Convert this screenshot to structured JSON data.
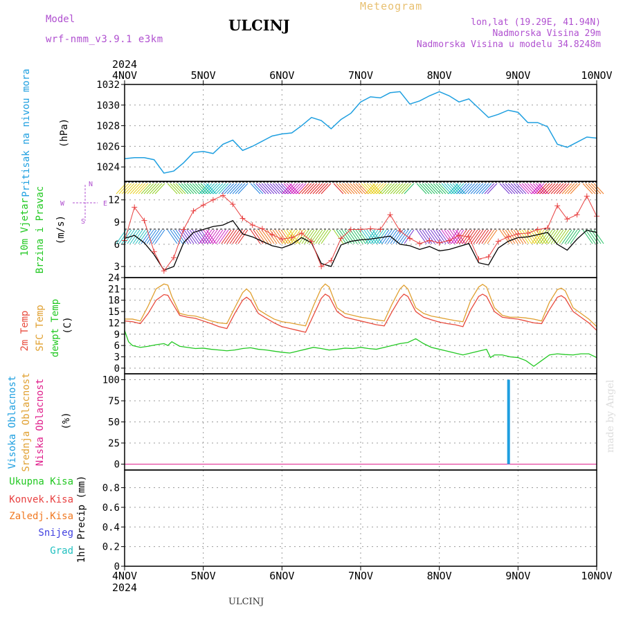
{
  "header": {
    "model_label": "Model",
    "model_name": "wrf-nmm_v3.9.1 e3km",
    "station": "ULCINJ",
    "product": "Meteogram",
    "coords": "lon,lat (19.29E, 41.94N)",
    "altitude": "Nadmorska Visina 29m",
    "model_altitude": "Nadmorska Visina u modelu 34.8248m",
    "footer_station": "ULCINJ",
    "credit": "made by Angel"
  },
  "colors": {
    "pressure": "#1e9fe0",
    "wind_speed": "#000000",
    "wind_gust": "#e84040",
    "temp_2m": "#e84a3c",
    "temp_sfc": "#e0a030",
    "dewpoint": "#22c822",
    "cloud_high": "#1e9fe0",
    "cloud_mid": "#e0a030",
    "cloud_low": "#e0208c",
    "precip_total": "#22c822",
    "precip_conv": "#e84040",
    "precip_frozen": "#f07820",
    "precip_snow": "#4040e0",
    "precip_hail": "#20c0c0",
    "model_text": "#b050d0",
    "product_text": "#e8c070"
  },
  "chart_data": [
    {
      "type": "line",
      "year_label": "2024",
      "x_tick_labels": [
        "4NOV",
        "5NOV",
        "6NOV",
        "7NOV",
        "8NOV",
        "9NOV",
        "10NOV"
      ],
      "xlim": [
        0,
        6
      ],
      "ylabel_title": "Pritisak na nivou mora",
      "ylabel_unit": "(hPa)",
      "ylim": [
        1022.6,
        1032
      ],
      "y_ticks": [
        1024,
        1026,
        1028,
        1030,
        1032
      ],
      "series": [
        {
          "x": [
            0,
            0.125,
            0.25,
            0.375,
            0.5,
            0.625,
            0.75,
            0.875,
            1,
            1.125,
            1.25,
            1.375,
            1.5,
            1.625,
            1.75,
            1.875,
            2,
            2.125,
            2.25,
            2.375,
            2.5,
            2.625,
            2.75,
            2.875,
            3,
            3.125,
            3.25,
            3.375,
            3.5,
            3.625,
            3.75,
            3.875,
            4,
            4.125,
            4.25,
            4.375,
            4.5,
            4.625,
            4.75,
            4.875,
            5,
            5.125,
            5.25,
            5.375,
            5.5,
            5.625,
            5.75,
            5.875,
            6
          ],
          "values": [
            1024.8,
            1024.9,
            1024.9,
            1024.7,
            1023.4,
            1023.6,
            1024.4,
            1025.4,
            1025.5,
            1025.3,
            1026.2,
            1026.6,
            1025.6,
            1026.0,
            1026.5,
            1027.0,
            1027.2,
            1027.3,
            1028.0,
            1028.8,
            1028.5,
            1027.7,
            1028.6,
            1029.2,
            1030.3,
            1030.8,
            1030.7,
            1031.2,
            1031.3,
            1030.1,
            1030.4,
            1030.9,
            1031.3,
            1030.9,
            1030.3,
            1030.6,
            1029.7,
            1028.8,
            1029.1,
            1029.5,
            1029.3,
            1028.3,
            1028.3,
            1027.9,
            1026.2,
            1025.9,
            1026.4,
            1026.9,
            1026.8
          ]
        }
      ]
    },
    {
      "type": "line",
      "ylabel_title": "10m Vjetar",
      "ylabel_title2": "Brzina i Pravac",
      "ylabel_unit": "(m/s)",
      "compass_n": "N",
      "compass_w": "W",
      "compass_e": "E",
      "compass_s": "S",
      "ylim": [
        1.5,
        14.5
      ],
      "y_ticks": [
        3,
        6,
        9,
        12
      ],
      "series": [
        {
          "name": "wind speed",
          "x": [
            0,
            0.125,
            0.25,
            0.375,
            0.5,
            0.625,
            0.75,
            0.875,
            1,
            1.125,
            1.25,
            1.375,
            1.5,
            1.625,
            1.75,
            1.875,
            2,
            2.125,
            2.25,
            2.375,
            2.5,
            2.625,
            2.75,
            2.875,
            3,
            3.125,
            3.25,
            3.375,
            3.5,
            3.625,
            3.75,
            3.875,
            4,
            4.125,
            4.25,
            4.375,
            4.5,
            4.625,
            4.75,
            4.875,
            5,
            5.125,
            5.25,
            5.375,
            5.5,
            5.625,
            5.75,
            5.875,
            6
          ],
          "values": [
            6.8,
            7.2,
            6.2,
            4.6,
            2.5,
            3.0,
            6.2,
            7.6,
            8.0,
            8.4,
            8.6,
            9.2,
            7.4,
            7.0,
            6.4,
            5.8,
            5.5,
            6.0,
            6.9,
            6.2,
            3.4,
            3.0,
            5.9,
            6.4,
            6.6,
            6.7,
            6.9,
            7.1,
            6.0,
            5.8,
            5.3,
            5.7,
            5.1,
            5.3,
            5.7,
            6.1,
            3.5,
            3.2,
            5.5,
            6.4,
            6.9,
            7.0,
            7.3,
            7.6,
            6.0,
            5.2,
            6.7,
            7.9,
            7.6
          ]
        },
        {
          "name": "wind gust",
          "x": [
            0,
            0.125,
            0.25,
            0.375,
            0.5,
            0.625,
            0.75,
            0.875,
            1,
            1.125,
            1.25,
            1.375,
            1.5,
            1.625,
            1.75,
            1.875,
            2,
            2.125,
            2.25,
            2.375,
            2.5,
            2.625,
            2.75,
            2.875,
            3,
            3.125,
            3.25,
            3.375,
            3.5,
            3.625,
            3.75,
            3.875,
            4,
            4.125,
            4.25,
            4.375,
            4.5,
            4.625,
            4.75,
            4.875,
            5,
            5.125,
            5.25,
            5.375,
            5.5,
            5.625,
            5.75,
            5.875,
            6
          ],
          "values": [
            6.5,
            11.0,
            9.2,
            5.0,
            2.4,
            4.2,
            8.0,
            10.5,
            11.3,
            12.0,
            12.6,
            11.4,
            9.5,
            8.6,
            8.1,
            7.3,
            6.7,
            6.9,
            7.5,
            6.4,
            3.0,
            3.8,
            6.8,
            8.0,
            8.0,
            8.1,
            8.0,
            10.0,
            7.8,
            6.8,
            6.1,
            6.5,
            6.2,
            6.5,
            7.2,
            7.0,
            4.0,
            4.3,
            6.4,
            7.0,
            7.4,
            7.5,
            8.0,
            8.2,
            11.2,
            9.4,
            10.0,
            12.5,
            9.8
          ]
        }
      ]
    },
    {
      "type": "line",
      "ylabel_title": "2m Temp",
      "ylabel_title2": "SFC Temp",
      "ylabel_title3": "dewpt Temp",
      "ylabel_unit": "(C)",
      "ylim": [
        -1.5,
        24
      ],
      "y_ticks": [
        0,
        3,
        6,
        9,
        12,
        15,
        18,
        21,
        24
      ],
      "series": [
        {
          "name": "2m Temp",
          "x": [
            0,
            0.1,
            0.2,
            0.3,
            0.4,
            0.5,
            0.55,
            0.6,
            0.7,
            0.8,
            0.9,
            1,
            1.1,
            1.2,
            1.3,
            1.4,
            1.5,
            1.55,
            1.6,
            1.7,
            1.8,
            1.9,
            2,
            2.1,
            2.2,
            2.3,
            2.4,
            2.5,
            2.55,
            2.6,
            2.7,
            2.8,
            2.9,
            3,
            3.1,
            3.2,
            3.3,
            3.4,
            3.5,
            3.55,
            3.6,
            3.7,
            3.8,
            3.9,
            4,
            4.1,
            4.2,
            4.3,
            4.4,
            4.5,
            4.55,
            4.6,
            4.7,
            4.8,
            4.9,
            5,
            5.1,
            5.2,
            5.3,
            5.4,
            5.5,
            5.55,
            5.6,
            5.7,
            5.8,
            5.9,
            6
          ],
          "values": [
            12.5,
            12.3,
            11.8,
            14.5,
            18.0,
            19.5,
            19.3,
            17.5,
            14.0,
            13.5,
            13.2,
            12.5,
            11.8,
            11.0,
            10.5,
            14.5,
            18.0,
            18.8,
            18.0,
            14.5,
            13.2,
            12.0,
            11.0,
            10.5,
            10.0,
            9.5,
            14.0,
            18.5,
            19.6,
            19.0,
            15.0,
            13.5,
            13.0,
            12.5,
            12.0,
            11.5,
            11.2,
            15.0,
            18.5,
            19.6,
            19.0,
            15.0,
            13.5,
            12.8,
            12.2,
            11.8,
            11.5,
            11.0,
            15.5,
            19.0,
            19.6,
            19.0,
            15.0,
            13.5,
            13.2,
            13.0,
            12.5,
            12.0,
            11.8,
            15.5,
            18.8,
            19.2,
            18.5,
            15.0,
            13.5,
            12.0,
            10.0
          ]
        },
        {
          "name": "SFC Temp",
          "x": [
            0,
            0.1,
            0.2,
            0.3,
            0.4,
            0.5,
            0.55,
            0.6,
            0.7,
            0.8,
            0.9,
            1,
            1.1,
            1.2,
            1.3,
            1.4,
            1.5,
            1.55,
            1.6,
            1.7,
            1.8,
            1.9,
            2,
            2.1,
            2.2,
            2.3,
            2.4,
            2.5,
            2.55,
            2.6,
            2.7,
            2.8,
            2.9,
            3,
            3.1,
            3.2,
            3.3,
            3.4,
            3.5,
            3.55,
            3.6,
            3.7,
            3.8,
            3.9,
            4,
            4.1,
            4.2,
            4.3,
            4.4,
            4.5,
            4.55,
            4.6,
            4.7,
            4.8,
            4.9,
            5,
            5.1,
            5.2,
            5.3,
            5.4,
            5.5,
            5.55,
            5.6,
            5.7,
            5.8,
            5.9,
            6
          ],
          "values": [
            13.0,
            13.0,
            12.5,
            16.5,
            21.0,
            22.3,
            22.0,
            19.0,
            14.5,
            14.0,
            13.8,
            13.2,
            12.5,
            12.0,
            11.8,
            16.0,
            20.0,
            21.0,
            20.0,
            15.5,
            14.2,
            13.0,
            12.3,
            12.0,
            11.6,
            11.2,
            16.5,
            21.2,
            22.3,
            21.5,
            16.0,
            14.5,
            14.0,
            13.5,
            13.2,
            12.8,
            12.5,
            17.0,
            21.0,
            22.0,
            21.0,
            16.0,
            14.5,
            13.8,
            13.4,
            13.0,
            12.6,
            12.3,
            18.0,
            21.5,
            22.2,
            21.5,
            16.0,
            14.0,
            13.5,
            13.5,
            13.3,
            13.0,
            12.5,
            17.5,
            20.8,
            21.2,
            20.5,
            16.0,
            14.5,
            13.0,
            11.0
          ]
        },
        {
          "name": "dewpt Temp",
          "x": [
            0,
            0.05,
            0.1,
            0.2,
            0.3,
            0.4,
            0.5,
            0.55,
            0.6,
            0.7,
            0.8,
            0.9,
            1,
            1.1,
            1.2,
            1.3,
            1.4,
            1.5,
            1.6,
            1.7,
            1.8,
            1.9,
            2,
            2.1,
            2.2,
            2.3,
            2.4,
            2.5,
            2.6,
            2.7,
            2.8,
            2.9,
            3,
            3.1,
            3.2,
            3.3,
            3.4,
            3.5,
            3.6,
            3.7,
            3.8,
            3.9,
            4,
            4.1,
            4.2,
            4.3,
            4.4,
            4.5,
            4.6,
            4.65,
            4.7,
            4.8,
            4.9,
            5,
            5.1,
            5.2,
            5.3,
            5.4,
            5.5,
            5.6,
            5.7,
            5.8,
            5.9,
            6
          ],
          "values": [
            10.0,
            7.0,
            6.0,
            5.5,
            5.8,
            6.2,
            6.5,
            6.0,
            7.0,
            5.8,
            5.5,
            5.2,
            5.3,
            5.0,
            4.8,
            4.6,
            4.8,
            5.2,
            5.4,
            5.0,
            4.8,
            4.5,
            4.2,
            4.0,
            4.5,
            5.0,
            5.5,
            5.2,
            4.8,
            5.0,
            5.3,
            5.2,
            5.5,
            5.2,
            5.0,
            5.5,
            6.0,
            6.5,
            6.8,
            7.8,
            6.5,
            5.5,
            5.0,
            4.5,
            4.0,
            3.5,
            4.0,
            4.5,
            5.0,
            2.8,
            3.5,
            3.5,
            3.0,
            2.8,
            2.0,
            0.5,
            2.0,
            3.5,
            3.8,
            3.6,
            3.5,
            3.8,
            3.8,
            2.8
          ]
        }
      ]
    },
    {
      "type": "bar",
      "ylabel_title": "Visoka Oblacnost",
      "ylabel_title2": "Srednja Oblacnost",
      "ylabel_title3": "Niska Oblacnost",
      "ylabel_unit": "(%)",
      "ylim": [
        -7,
        107
      ],
      "y_ticks": [
        0,
        25,
        50,
        75,
        100
      ],
      "series": [
        {
          "name": "Visoka Oblacnost",
          "x": [
            4.88
          ],
          "values": [
            100
          ]
        },
        {
          "name": "Srednja Oblacnost",
          "x": [],
          "values": []
        },
        {
          "name": "Niska Oblacnost",
          "x": [],
          "values": []
        }
      ]
    },
    {
      "type": "bar",
      "ylabel_title": "1hr Precip",
      "ylabel_unit": "(mm)",
      "ylim": [
        0,
        0.98
      ],
      "y_ticks": [
        0,
        0.2,
        0.4,
        0.6,
        0.8
      ],
      "y_tick_labels": [
        "0",
        "0.2",
        "0.4",
        "0.6",
        "0.8"
      ],
      "legend": [
        "Ukupna Kisa",
        "Konvek.Kisa",
        "Zaledj.Kisa",
        "Snijeg",
        "Grad"
      ],
      "series": []
    }
  ]
}
